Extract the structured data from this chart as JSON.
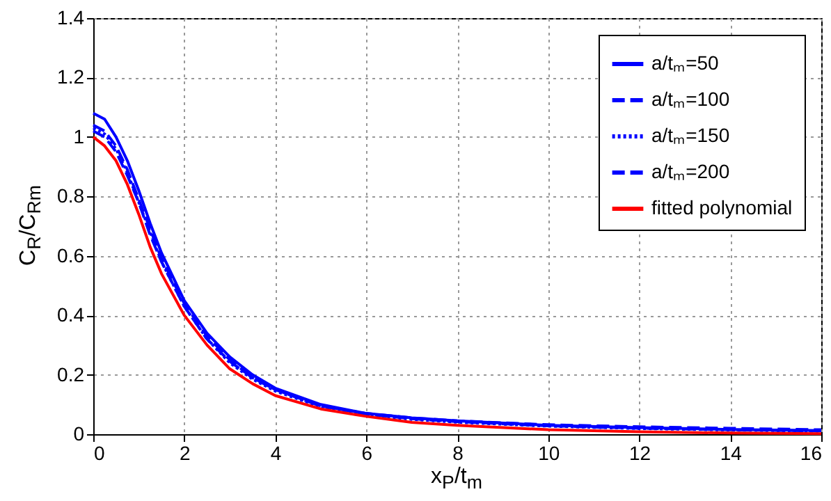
{
  "chart_data": {
    "type": "line",
    "xlabel": "x$_{P}$/t$_{m}$",
    "ylabel": "C$_{R}$/C$_{Rm}$",
    "x": [
      0,
      0.25,
      0.5,
      0.75,
      1,
      1.25,
      1.5,
      2,
      2.5,
      3,
      3.5,
      4,
      5,
      6,
      7,
      8,
      10,
      12,
      14,
      16
    ],
    "series": [
      {
        "name": "a/tₘ=50",
        "color": "#0000ff",
        "line_style": "solid",
        "values": [
          1.08,
          1.06,
          1.0,
          0.92,
          0.82,
          0.71,
          0.61,
          0.45,
          0.34,
          0.26,
          0.2,
          0.155,
          0.1,
          0.07,
          0.055,
          0.045,
          0.03,
          0.022,
          0.016,
          0.012
        ]
      },
      {
        "name": "a/tₘ=100",
        "color": "#0000ff",
        "line_style": "dashed",
        "values": [
          1.04,
          1.02,
          0.97,
          0.89,
          0.79,
          0.69,
          0.59,
          0.44,
          0.33,
          0.25,
          0.19,
          0.15,
          0.095,
          0.068,
          0.052,
          0.042,
          0.028,
          0.02,
          0.015,
          0.011
        ]
      },
      {
        "name": "a/tₘ=150",
        "color": "#0000ff",
        "line_style": "dotted",
        "values": [
          1.03,
          1.01,
          0.96,
          0.88,
          0.78,
          0.68,
          0.58,
          0.43,
          0.32,
          0.24,
          0.185,
          0.145,
          0.092,
          0.065,
          0.05,
          0.04,
          0.027,
          0.019,
          0.014,
          0.01
        ]
      },
      {
        "name": "a/tₘ=200",
        "color": "#0000ff",
        "line_style": "dashed",
        "values": [
          1.02,
          1.0,
          0.95,
          0.87,
          0.78,
          0.67,
          0.58,
          0.43,
          0.32,
          0.245,
          0.19,
          0.15,
          0.095,
          0.07,
          0.055,
          0.045,
          0.032,
          0.025,
          0.02,
          0.015
        ]
      },
      {
        "name": "fitted polynomial",
        "color": "#ff0000",
        "line_style": "solid",
        "values": [
          1.0,
          0.97,
          0.92,
          0.84,
          0.74,
          0.63,
          0.54,
          0.4,
          0.3,
          0.22,
          0.17,
          0.13,
          0.085,
          0.06,
          0.04,
          0.03,
          0.015,
          0.008,
          0.004,
          0.002
        ]
      }
    ],
    "xlim": [
      0,
      16
    ],
    "xticks": [
      0,
      2,
      4,
      6,
      8,
      10,
      12,
      14,
      16
    ],
    "ylim": [
      0,
      1.4
    ],
    "yticks": [
      0,
      0.2,
      0.4,
      0.6,
      0.8,
      1,
      1.2,
      1.4
    ],
    "grid": true,
    "legend": "top right"
  }
}
